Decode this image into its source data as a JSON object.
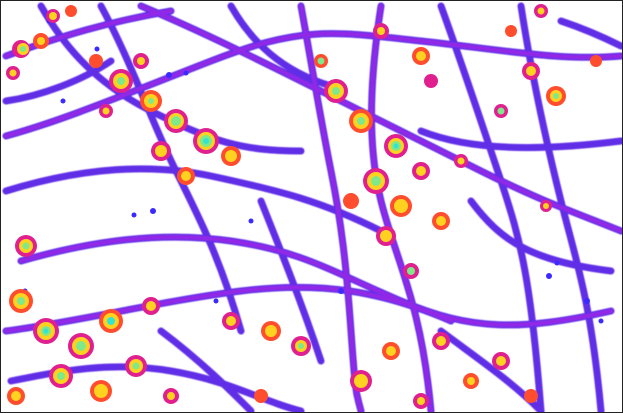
{
  "image": {
    "kind": "false-color fluorescence intensity map",
    "background_color": "#ffffff",
    "border_color": "#222222",
    "palette": {
      "low": "#4a1fe8",
      "low_mid": "#9a1fe0",
      "mid": "#e0208f",
      "mid_high": "#ff4d2e",
      "high": "#ffd21f",
      "very_high": "#7ee88a",
      "peak": "#34e3d0"
    }
  }
}
